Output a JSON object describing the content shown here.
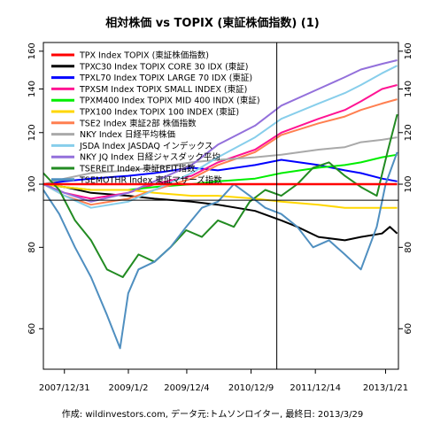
{
  "chart_data": {
    "type": "line",
    "title": "相対株価 vs TOPIX (東証株価指数) (1)",
    "caption": "作成: wildinvestors.com, データ元:トムソンロイター, 最終日: 2013/3/29",
    "xlabel": "",
    "ylabel": "",
    "log_scale_y": true,
    "ylim": [
      52,
      165
    ],
    "xlim": [
      "2007/09/01",
      "2013/04/05"
    ],
    "grid": false,
    "legend_position": "top-left",
    "x_tick_labels": [
      "2007/12/31",
      "2009/1/2",
      "2009/12/4",
      "2010/12/9",
      "2011/12/14",
      "2013/1/21"
    ],
    "x_ticks": [
      "2007/12/31",
      "2009/01/02",
      "2009/12/04",
      "2010/12/09",
      "2011/12/14",
      "2013/01/21"
    ],
    "y_ticks": [
      60,
      80,
      100,
      120,
      140,
      160
    ],
    "hlines": [
      {
        "y": 100,
        "color": "#ff0000"
      },
      {
        "y": 94.5,
        "color": "#000000"
      }
    ],
    "vline": {
      "x": "2011/05/06",
      "color": "#000000"
    },
    "series": [
      {
        "name": "TPX Index TOPIX (東証株価指数)",
        "color": "#ff0000",
        "width": 2.5,
        "x": [
          "2007/09/01",
          "2013/03/29"
        ],
        "y": [
          100,
          100
        ]
      },
      {
        "name": "TPXC30 Index TOPIX CORE 30 IDX (東証)",
        "color": "#000000",
        "width": 2,
        "x": [
          "2007/09/01",
          "2008/01/01",
          "2008/06/01",
          "2009/01/01",
          "2009/06/01",
          "2010/01/01",
          "2010/06/01",
          "2011/01/01",
          "2011/06/01",
          "2011/09/01",
          "2012/01/01",
          "2012/06/01",
          "2012/09/01",
          "2013/01/01",
          "2013/02/15",
          "2013/03/29"
        ],
        "y": [
          100,
          99,
          97,
          96,
          95,
          94,
          93,
          91,
          88,
          86,
          83,
          82,
          83,
          84,
          86,
          84
        ]
      },
      {
        "name": "TPXL70 Index TOPIX LARGE 70 IDX (東証)",
        "color": "#0000ff",
        "width": 2,
        "x": [
          "2007/09/01",
          "2008/01/01",
          "2008/06/01",
          "2009/01/01",
          "2009/06/01",
          "2010/01/01",
          "2010/06/01",
          "2011/01/01",
          "2011/06/01",
          "2012/01/01",
          "2012/06/01",
          "2012/09/01",
          "2013/01/01",
          "2013/03/29"
        ],
        "y": [
          100,
          101,
          102,
          103,
          104,
          106,
          105,
          107,
          109,
          107,
          105,
          104,
          102,
          101
        ]
      },
      {
        "name": "TPXSM Index TOPIX SMALL INDEX (東証)",
        "color": "#ff1493",
        "width": 2,
        "x": [
          "2007/09/01",
          "2008/01/01",
          "2008/06/01",
          "2009/01/01",
          "2009/06/01",
          "2010/01/01",
          "2010/06/01",
          "2011/01/01",
          "2011/06/01",
          "2012/01/01",
          "2012/06/01",
          "2012/09/01",
          "2013/01/01",
          "2013/03/29"
        ],
        "y": [
          100,
          97,
          95,
          97,
          100,
          103,
          108,
          113,
          120,
          126,
          130,
          134,
          140,
          142
        ]
      },
      {
        "name": "TPXM400 Index TOPIX MID 400 INDX (東証)",
        "color": "#00ee00",
        "width": 2,
        "x": [
          "2007/09/01",
          "2008/01/01",
          "2008/06/01",
          "2009/01/01",
          "2009/06/01",
          "2010/01/01",
          "2010/06/01",
          "2011/01/01",
          "2011/06/01",
          "2012/01/01",
          "2012/06/01",
          "2012/09/01",
          "2013/01/01",
          "2013/03/29"
        ],
        "y": [
          100,
          99,
          98,
          98,
          99,
          100,
          101,
          102,
          104,
          106,
          107,
          108,
          110,
          111
        ]
      },
      {
        "name": "TPX100 Index TOPIX 100 INDEX (東証)",
        "color": "#ffd700",
        "width": 2,
        "x": [
          "2007/09/01",
          "2008/01/01",
          "2008/06/01",
          "2009/01/01",
          "2009/06/01",
          "2010/01/01",
          "2010/06/01",
          "2011/01/01",
          "2011/06/01",
          "2012/01/01",
          "2012/06/01",
          "2012/09/01",
          "2013/01/01",
          "2013/03/29"
        ],
        "y": [
          100,
          99,
          98,
          98,
          97,
          96,
          96,
          95,
          94,
          93,
          92,
          92,
          92,
          92
        ]
      },
      {
        "name": "TSE2 Index 東証2部 株価指数",
        "color": "#ff7f50",
        "width": 2,
        "x": [
          "2007/09/01",
          "2008/01/01",
          "2008/06/01",
          "2009/01/01",
          "2009/06/01",
          "2010/01/01",
          "2010/06/01",
          "2011/01/01",
          "2011/06/01",
          "2012/01/01",
          "2012/06/01",
          "2012/09/01",
          "2013/01/01",
          "2013/03/29"
        ],
        "y": [
          100,
          96,
          93,
          95,
          98,
          102,
          107,
          112,
          119,
          124,
          127,
          130,
          133,
          135
        ]
      },
      {
        "name": "NKY Index 日経平均株価",
        "color": "#a9a9a9",
        "width": 2,
        "x": [
          "2007/09/01",
          "2008/01/01",
          "2008/06/01",
          "2009/01/01",
          "2009/06/01",
          "2010/01/01",
          "2010/06/01",
          "2011/01/01",
          "2011/06/01",
          "2012/01/01",
          "2012/06/01",
          "2012/09/01",
          "2013/01/01",
          "2013/03/29"
        ],
        "y": [
          100,
          102,
          104,
          105,
          106,
          108,
          109,
          110,
          111,
          113,
          114,
          116,
          117,
          118
        ]
      },
      {
        "name": "JSDA Index JASDAQ インデックス",
        "color": "#87ceeb",
        "width": 2,
        "x": [
          "2007/09/01",
          "2008/01/01",
          "2008/06/01",
          "2009/01/01",
          "2009/06/01",
          "2010/01/01",
          "2010/06/01",
          "2011/01/01",
          "2011/06/01",
          "2012/01/01",
          "2012/06/01",
          "2012/09/01",
          "2013/01/01",
          "2013/03/29"
        ],
        "y": [
          100,
          96,
          92,
          94,
          98,
          104,
          110,
          118,
          126,
          133,
          138,
          142,
          148,
          152
        ]
      },
      {
        "name": "NKY JQ Index 日経ジャスダック平均",
        "color": "#9370db",
        "width": 2,
        "x": [
          "2007/09/01",
          "2008/01/01",
          "2008/06/01",
          "2009/01/01",
          "2009/06/01",
          "2010/01/01",
          "2010/06/01",
          "2011/01/01",
          "2011/06/01",
          "2012/01/01",
          "2012/06/01",
          "2012/09/01",
          "2013/01/01",
          "2013/03/29"
        ],
        "y": [
          100,
          97,
          94,
          97,
          101,
          107,
          115,
          123,
          132,
          140,
          146,
          150,
          153,
          155
        ]
      },
      {
        "name": "TSEREIT Index 東証REIT指数",
        "color": "#228b22",
        "width": 2,
        "x": [
          "2007/09/01",
          "2007/12/01",
          "2008/03/01",
          "2008/06/01",
          "2008/09/01",
          "2008/12/01",
          "2009/03/01",
          "2009/06/01",
          "2009/09/01",
          "2009/12/01",
          "2010/03/01",
          "2010/06/01",
          "2010/09/01",
          "2010/12/01",
          "2011/03/01",
          "2011/06/01",
          "2011/09/01",
          "2011/12/01",
          "2012/03/01",
          "2012/06/01",
          "2012/09/01",
          "2012/12/01",
          "2013/02/01",
          "2013/03/29"
        ],
        "y": [
          104,
          98,
          88,
          82,
          74,
          72,
          78,
          76,
          80,
          85,
          83,
          88,
          86,
          94,
          98,
          96,
          100,
          106,
          108,
          103,
          99,
          96,
          112,
          128
        ]
      },
      {
        "name": "TSEMOTHR Index 東証マザーズ指数",
        "color": "#4f8fc0",
        "width": 2,
        "x": [
          "2007/09/01",
          "2007/12/01",
          "2008/03/01",
          "2008/06/01",
          "2008/09/01",
          "2008/11/15",
          "2009/01/01",
          "2009/03/01",
          "2009/06/01",
          "2009/09/01",
          "2009/12/01",
          "2010/03/01",
          "2010/06/01",
          "2010/09/01",
          "2010/12/01",
          "2011/03/01",
          "2011/06/01",
          "2011/09/01",
          "2011/12/01",
          "2012/03/01",
          "2012/06/01",
          "2012/09/01",
          "2012/12/01",
          "2013/01/21",
          "2013/03/29"
        ],
        "y": [
          98,
          90,
          80,
          72,
          63,
          56,
          68,
          74,
          76,
          80,
          86,
          92,
          94,
          100,
          96,
          92,
          90,
          86,
          80,
          82,
          78,
          74,
          86,
          100,
          112
        ]
      }
    ]
  }
}
